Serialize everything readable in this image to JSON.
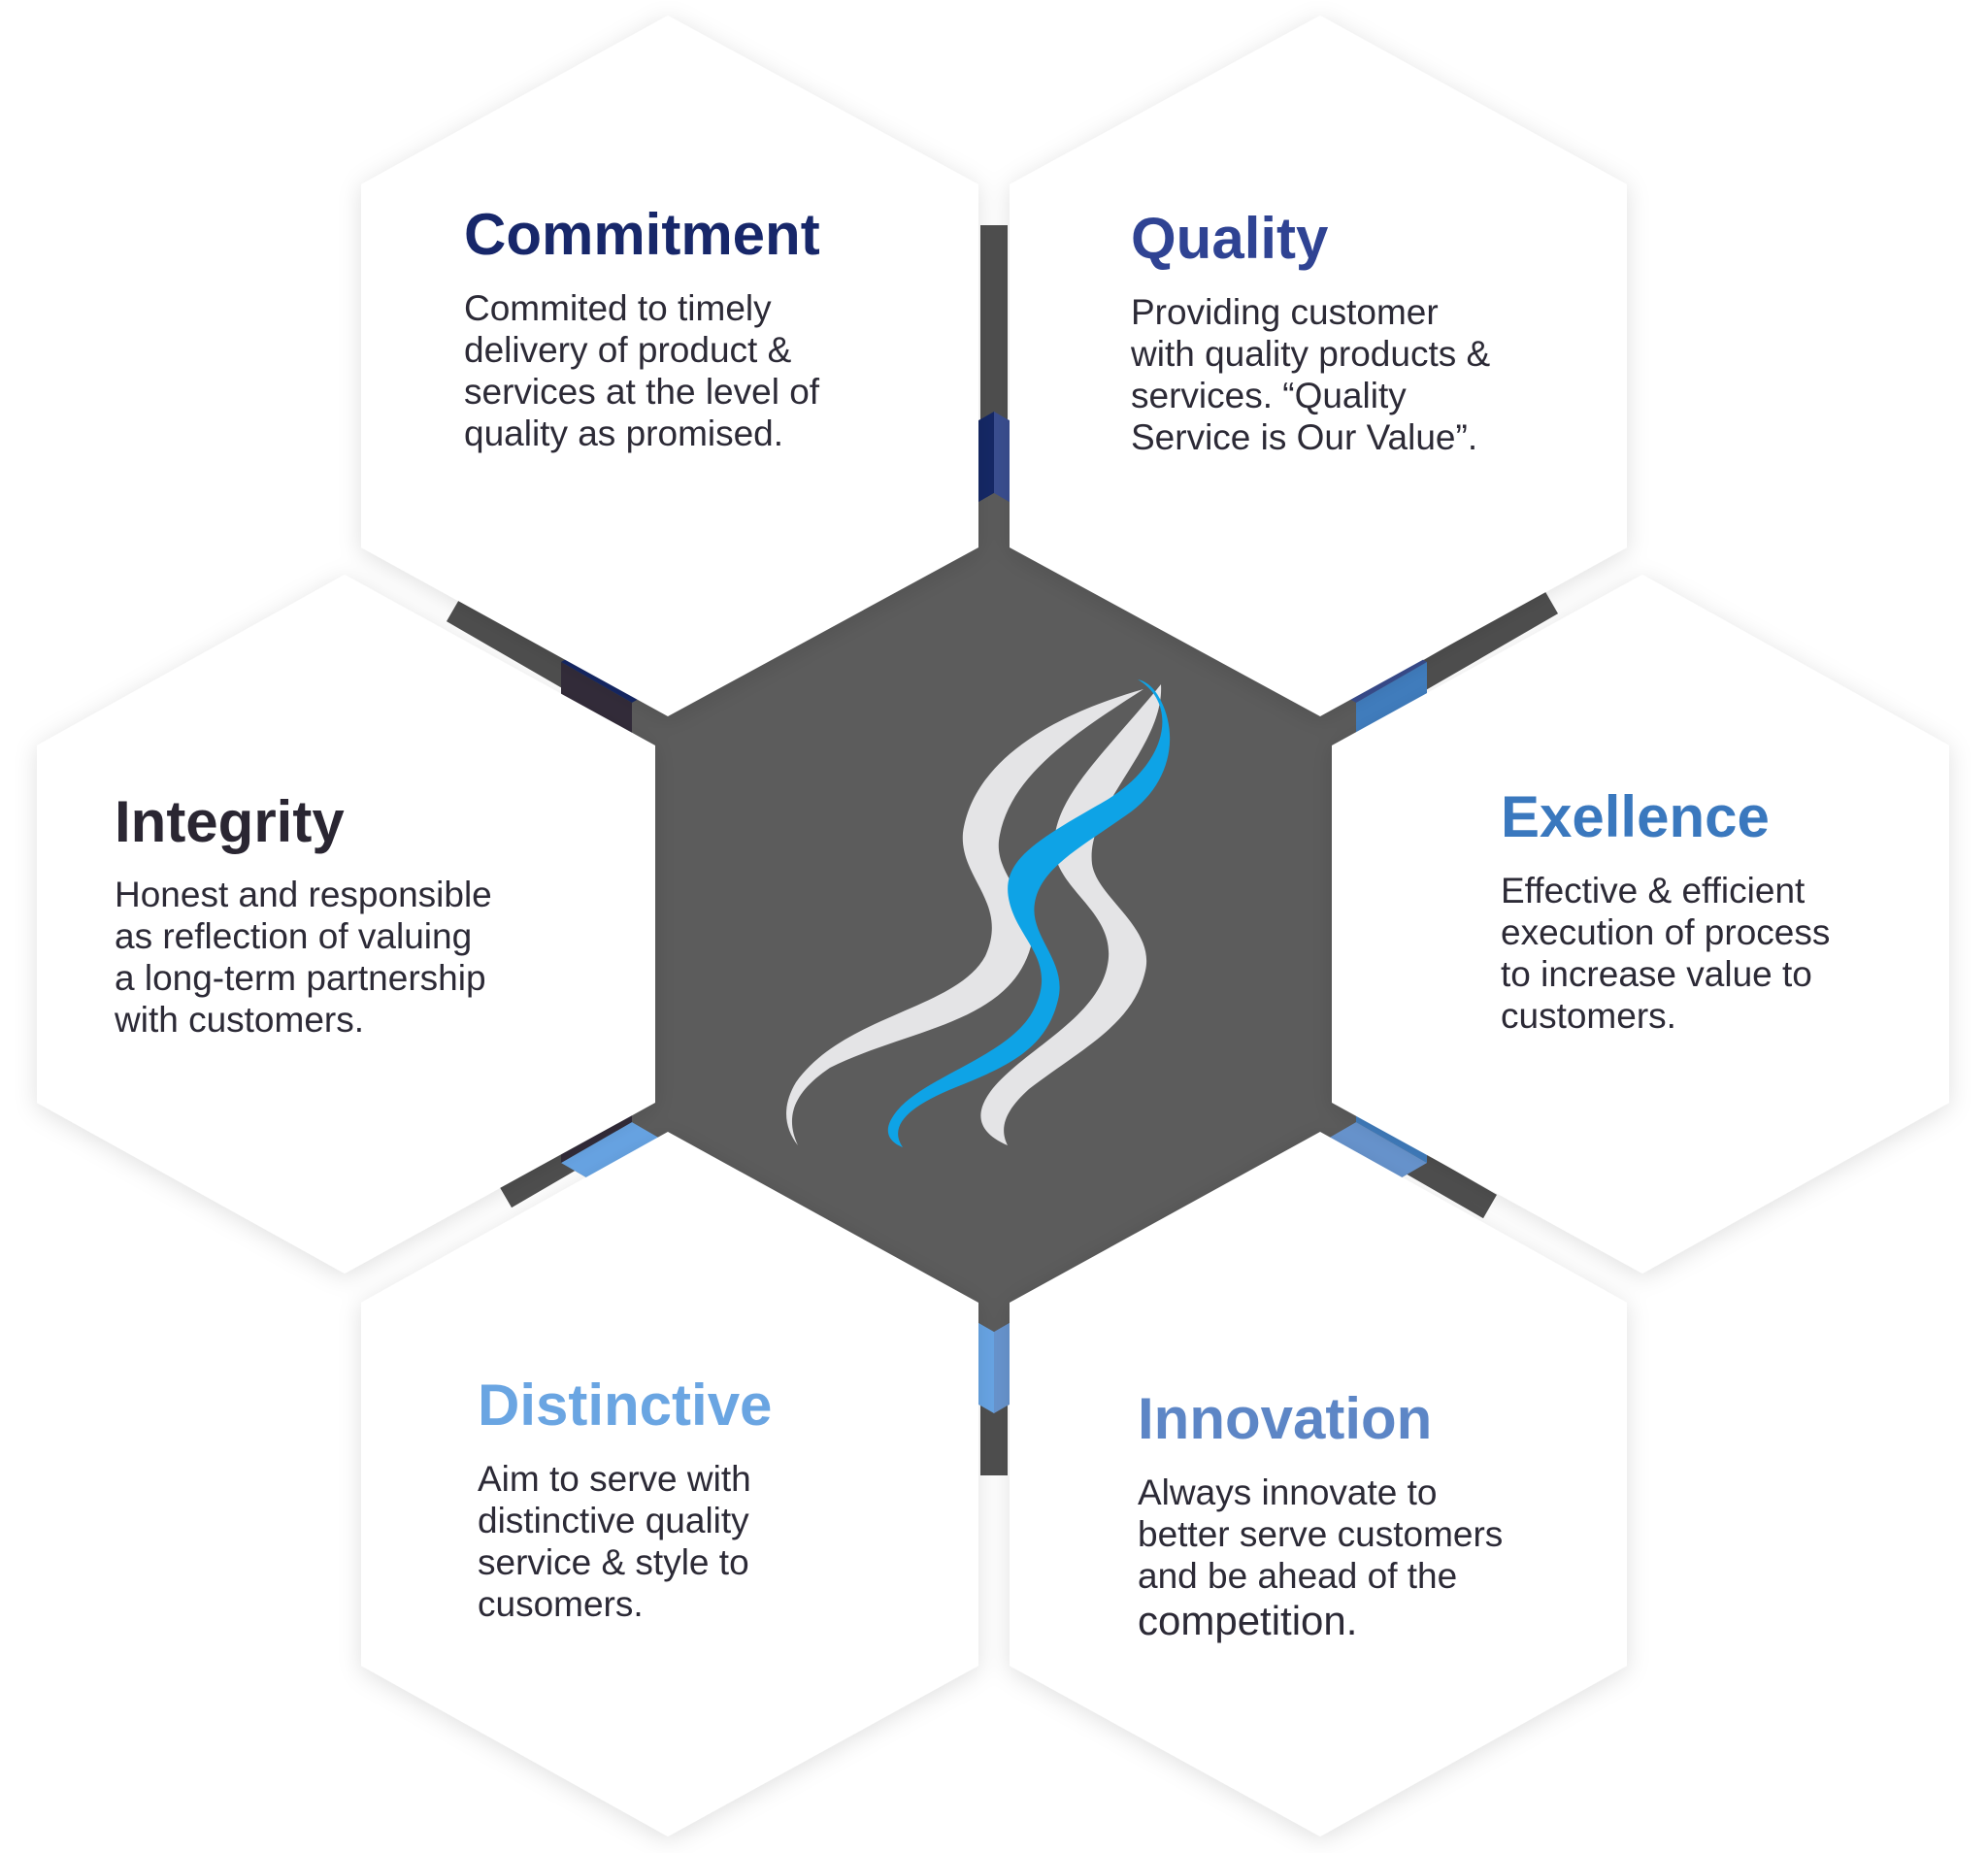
{
  "colors": {
    "center_fill": "#5c5c5c",
    "connector": "#4f4f4f",
    "hex_card_fill": "#ffffff",
    "logo_light": "#e4e4e6",
    "logo_blue": "#0ea3e6"
  },
  "values": [
    {
      "id": "commitment",
      "title": "Commitment",
      "title_color": "#17276a",
      "segment_color": "#152866",
      "lines": [
        "Commited to timely",
        "delivery of product &",
        "services at the level of",
        "quality as promised."
      ]
    },
    {
      "id": "quality",
      "title": "Quality",
      "title_color": "#2f4393",
      "segment_color": "#3a4e90",
      "lines": [
        "Providing customer",
        "with quality products &",
        "services. “Quality",
        "Service is Our Value”."
      ]
    },
    {
      "id": "exellence",
      "title": "Exellence",
      "title_color": "#3a78be",
      "segment_color": "#417ec0",
      "lines": [
        "Effective & efficient",
        "execution of process",
        "to increase value to",
        "customers."
      ]
    },
    {
      "id": "innovation",
      "title": "Innovation",
      "title_color": "#5d86c6",
      "segment_color": "#6895cf",
      "lines": [
        "Always innovate to",
        "better serve customers",
        "and be ahead of the",
        "competition."
      ]
    },
    {
      "id": "distinctive",
      "title": "Distinctive",
      "title_color": "#6aa5e2",
      "segment_color": "#68a5e5",
      "lines": [
        "Aim to serve with",
        "distinctive quality",
        "service & style to",
        "cusomers."
      ]
    },
    {
      "id": "integrity",
      "title": "Integrity",
      "title_color": "#2a2632",
      "segment_color": "#332c3a",
      "lines": [
        "Honest and responsible",
        "as reflection of valuing",
        "a long-term partnership",
        "with customers."
      ]
    }
  ]
}
